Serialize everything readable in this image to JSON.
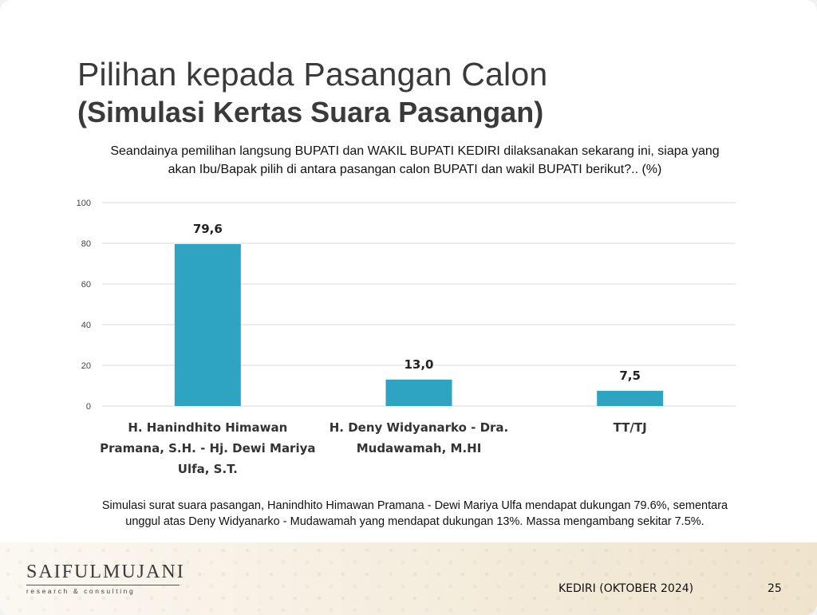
{
  "slide": {
    "title": "Pilihan kepada Pasangan Calon",
    "subtitle": "(Simulasi Kertas Suara Pasangan)",
    "question_line1": "Seandainya pemilihan langsung BUPATI dan WAKIL BUPATI KEDIRI dilaksanakan sekarang ini, siapa yang",
    "question_line2": "akan Ibu/Bapak pilih di antara pasangan calon BUPATI dan wakil BUPATI berikut?.. (%)",
    "summary_line1": "Simulasi surat suara pasangan, Hanindhito Himawan Pramana - Dewi Mariya Ulfa mendapat dukungan 79.6%, sementara",
    "summary_line2": "unggul atas Deny Widyanarko -  Mudawamah yang mendapat dukungan 13%. Massa mengambang sekitar 7.5%.",
    "footer_location": "KEDIRI (OKTOBER 2024)",
    "page_number": "25",
    "logo_name": "SAIFULMUJANI",
    "logo_tagline": "research & consulting"
  },
  "chart_data": {
    "type": "bar",
    "title": "",
    "xlabel": "",
    "ylabel": "",
    "categories": [
      [
        "H. Hanindhito Himawan",
        "Pramana, S.H. - Hj. Dewi Mariya",
        "Ulfa, S.T."
      ],
      [
        "H. Deny Widyanarko - Dra.",
        "Mudawamah, M.HI"
      ],
      [
        "TT/TJ"
      ]
    ],
    "values": [
      79.6,
      13.0,
      7.5
    ],
    "value_labels": [
      "79,6",
      "13,0",
      "7,5"
    ],
    "y_ticks": [
      0,
      20,
      40,
      60,
      80,
      100
    ],
    "ylim": [
      0,
      100
    ],
    "grid": true,
    "bar_color": "#2fa3c2",
    "grid_color": "#d9d9d9"
  }
}
